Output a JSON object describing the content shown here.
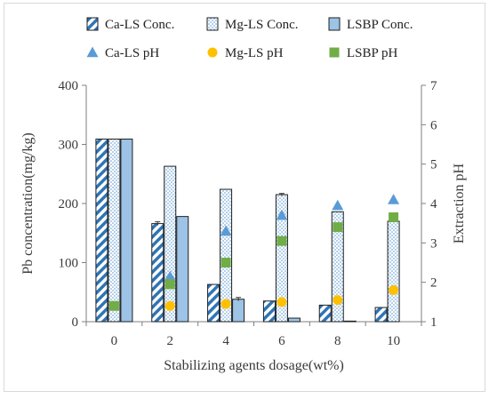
{
  "chart_data": {
    "type": "bar",
    "xlabel": "Stabilizing agents dosage(wt%)",
    "ylabel": "Pb concentration(mg/kg)",
    "y2label": "Extraction pH",
    "categories": [
      "0",
      "2",
      "4",
      "6",
      "8",
      "10"
    ],
    "ylim": [
      0,
      400
    ],
    "yticks": [
      "0",
      "100",
      "200",
      "300",
      "400"
    ],
    "y2lim": [
      1,
      7
    ],
    "y2ticks": [
      "1",
      "2",
      "3",
      "4",
      "5",
      "6",
      "7"
    ],
    "grid": false,
    "legend_position": "top",
    "series": [
      {
        "name": "Ca-LS Conc.",
        "kind": "bar",
        "pattern": "diagonal-stripes",
        "color": "#2e75b6",
        "values": [
          309,
          166,
          63,
          35,
          28,
          24
        ]
      },
      {
        "name": "Mg-LS Conc.",
        "kind": "bar",
        "pattern": "dots",
        "color": "#9dc3e6",
        "values": [
          309,
          263,
          224,
          215,
          186,
          170
        ]
      },
      {
        "name": "LSBP Conc.",
        "kind": "bar",
        "pattern": "solid",
        "color": "#9dc3e6",
        "values": [
          309,
          178,
          38,
          6,
          1,
          0
        ]
      },
      {
        "name": "Ca-LS pH",
        "kind": "scatter",
        "marker": "triangle",
        "axis": "right",
        "color": "#5b9bd5",
        "values": [
          null,
          2.15,
          3.3,
          3.7,
          3.95,
          4.1
        ]
      },
      {
        "name": "Mg-LS pH",
        "kind": "scatter",
        "marker": "circle",
        "axis": "right",
        "color": "#ffc000",
        "values": [
          null,
          1.4,
          1.45,
          1.5,
          1.55,
          1.8
        ]
      },
      {
        "name": "LSBP pH",
        "kind": "scatter",
        "marker": "square",
        "axis": "right",
        "color": "#70ad47",
        "values": [
          1.4,
          1.95,
          2.5,
          3.05,
          3.4,
          3.65
        ]
      }
    ],
    "error_bars": {
      "Ca-LS Conc.": [
        0,
        3,
        0,
        0,
        0,
        0
      ],
      "Mg-LS Conc.": [
        0,
        0,
        0,
        2,
        0,
        0
      ],
      "LSBP Conc.": [
        0,
        0,
        3,
        0,
        0,
        0
      ]
    }
  }
}
